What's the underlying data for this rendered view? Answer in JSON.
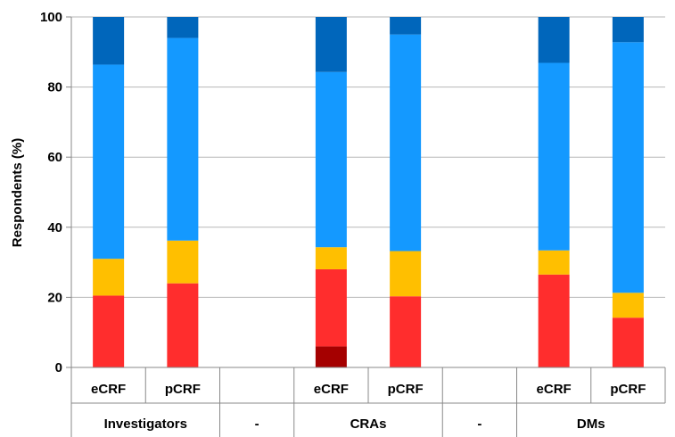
{
  "chart_data": {
    "type": "bar",
    "stacked": true,
    "ylabel": "Respondents (%)",
    "ylim": [
      0,
      100
    ],
    "yticks": [
      0,
      20,
      40,
      60,
      80,
      100
    ],
    "grid": true,
    "categories": [
      "eCRF",
      "pCRF",
      "",
      "eCRF",
      "pCRF",
      "",
      "eCRF",
      "pCRF"
    ],
    "groups": [
      {
        "label": "Investigators",
        "span": 2
      },
      {
        "label": "-",
        "span": 1
      },
      {
        "label": "CRAs",
        "span": 2
      },
      {
        "label": "-",
        "span": 1
      },
      {
        "label": "DMs",
        "span": 2
      }
    ],
    "series": [
      {
        "color": "#A50000",
        "values": [
          0,
          0,
          null,
          6,
          0,
          null,
          0,
          0
        ]
      },
      {
        "color": "#FF2D2D",
        "values": [
          20.5,
          24,
          null,
          22,
          20.3,
          null,
          26.5,
          14.2
        ]
      },
      {
        "color": "#FFBF00",
        "values": [
          10.5,
          12.2,
          null,
          6.3,
          12.9,
          null,
          6.9,
          7.1
        ]
      },
      {
        "color": "#1499FF",
        "values": [
          55.4,
          57.8,
          null,
          50,
          61.8,
          null,
          53.5,
          71.5
        ]
      },
      {
        "color": "#0066BB",
        "values": [
          13.6,
          6,
          null,
          15.7,
          5,
          null,
          13.1,
          7.2
        ]
      }
    ]
  }
}
